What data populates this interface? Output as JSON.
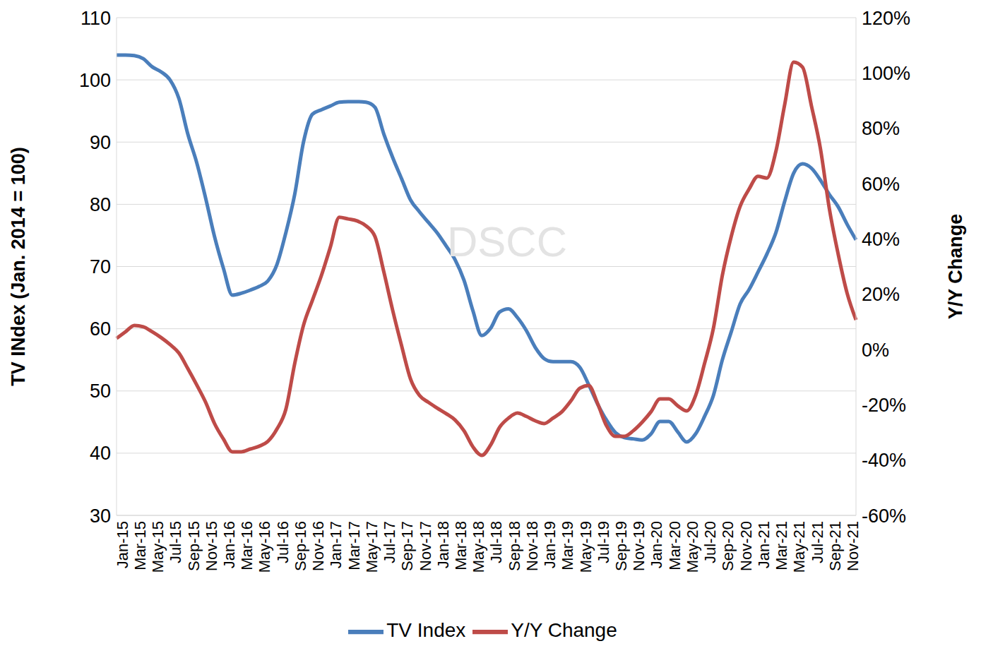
{
  "chart_data": {
    "type": "line",
    "annotation": "DSCC",
    "y_label": "TV INdex (Jan. 2014 = 100)",
    "y2_label": "Y/Y Change",
    "categories": [
      "Jan-15",
      null,
      "Mar-15",
      null,
      "May-15",
      null,
      "Jul-15",
      null,
      "Sep-15",
      null,
      "Nov-15",
      null,
      "Jan-16",
      null,
      "Mar-16",
      null,
      "May-16",
      null,
      "Jul-16",
      null,
      "Sep-16",
      null,
      "Nov-16",
      null,
      "Jan-17",
      null,
      "Mar-17",
      null,
      "May-17",
      null,
      "Jul-17",
      null,
      "Sep-17",
      null,
      "Nov-17",
      null,
      "Jan-18",
      null,
      "Mar-18",
      null,
      "May-18",
      null,
      "Jul-18",
      null,
      "Sep-18",
      null,
      "Nov-18",
      null,
      "Jan-19",
      null,
      "Mar-19",
      null,
      "May-19",
      null,
      "Jul-19",
      null,
      "Sep-19",
      null,
      "Nov-19",
      null,
      "Jan-20",
      null,
      "Mar-20",
      null,
      "May-20",
      null,
      "Jul-20",
      null,
      "Sep-20",
      null,
      "Nov-20",
      null,
      "Jan-21",
      null,
      "Mar-21",
      null,
      "May-21",
      null,
      "Jul-21",
      null,
      "Sep-21",
      null,
      "Nov-21",
      null
    ],
    "series": [
      {
        "name": "TV Index",
        "color": "#4a7ebb",
        "values": [
          104.0,
          104.0,
          103.9,
          103.4,
          102.1,
          101.3,
          100.0,
          97.0,
          91.3,
          86.7,
          81.0,
          74.8,
          69.7,
          65.4,
          65.7,
          66.2,
          66.8,
          67.7,
          70.3,
          75.4,
          81.6,
          90.1,
          94.5,
          95.2,
          95.8,
          96.4,
          96.5,
          96.5,
          96.4,
          95.6,
          91.3,
          87.5,
          84.1,
          80.7,
          78.8,
          77.1,
          75.4,
          73.3,
          71.1,
          67.8,
          62.9,
          58.9,
          60.1,
          62.7,
          63.2,
          61.8,
          59.7,
          57.0,
          55.2,
          54.7,
          54.7,
          54.7,
          53.8,
          51.0,
          47.9,
          45.3,
          43.3,
          42.5,
          42.3,
          42.1,
          43.1,
          45.1,
          45.1,
          43.4,
          41.8,
          43.1,
          45.9,
          49.3,
          55.0,
          59.5,
          64.0,
          66.3,
          69.1,
          72.0,
          75.4,
          80.5,
          85.0,
          86.5,
          85.8,
          83.9,
          81.6,
          79.6,
          76.8,
          74.3
        ]
      },
      {
        "name": "Y/Y Change",
        "color": "#be4b48",
        "axis": "y2",
        "values": [
          4,
          6.4,
          8.7,
          8.2,
          6.4,
          4.3,
          1.8,
          -1.3,
          -6.9,
          -12.8,
          -19.1,
          -26.8,
          -32.4,
          -37,
          -37,
          -36,
          -35,
          -33.2,
          -28.8,
          -21.7,
          -5.1,
          8.9,
          17.9,
          26.8,
          37,
          47.8,
          47.2,
          46.5,
          44.7,
          40.9,
          28.1,
          14.1,
          1.3,
          -10.7,
          -16.6,
          -19.1,
          -21.2,
          -23.2,
          -25.5,
          -29.4,
          -35.2,
          -38.3,
          -34.5,
          -28.1,
          -24.8,
          -23,
          -24.2,
          -25.8,
          -26.8,
          -24.8,
          -22.5,
          -18.6,
          -14,
          -13,
          -19.6,
          -27.6,
          -31.4,
          -31.4,
          -29.4,
          -26.3,
          -22.5,
          -17.9,
          -17.9,
          -20.4,
          -22.2,
          -16.6,
          -5.1,
          7.7,
          26.8,
          40.9,
          51.8,
          58,
          62.6,
          62,
          71.5,
          88.6,
          103.9,
          102.1,
          88.1,
          72.8,
          51.1,
          34.5,
          20.4,
          10.7
        ]
      }
    ],
    "ylim": [
      30,
      110
    ],
    "yticks": [
      30,
      40,
      50,
      60,
      70,
      80,
      90,
      100,
      110
    ],
    "y2lim": [
      -60,
      120
    ],
    "y2ticks": [
      {
        "value": -60,
        "label": "-60%"
      },
      {
        "value": -40,
        "label": "-40%"
      },
      {
        "value": -20,
        "label": "-20%"
      },
      {
        "value": 0,
        "label": "0%"
      },
      {
        "value": 20,
        "label": "20%"
      },
      {
        "value": 40,
        "label": "40%"
      },
      {
        "value": 60,
        "label": "60%"
      },
      {
        "value": 80,
        "label": "80%"
      },
      {
        "value": 100,
        "label": "100%"
      },
      {
        "value": 120,
        "label": "120%"
      }
    ],
    "grid": true,
    "legend": "bottom"
  }
}
